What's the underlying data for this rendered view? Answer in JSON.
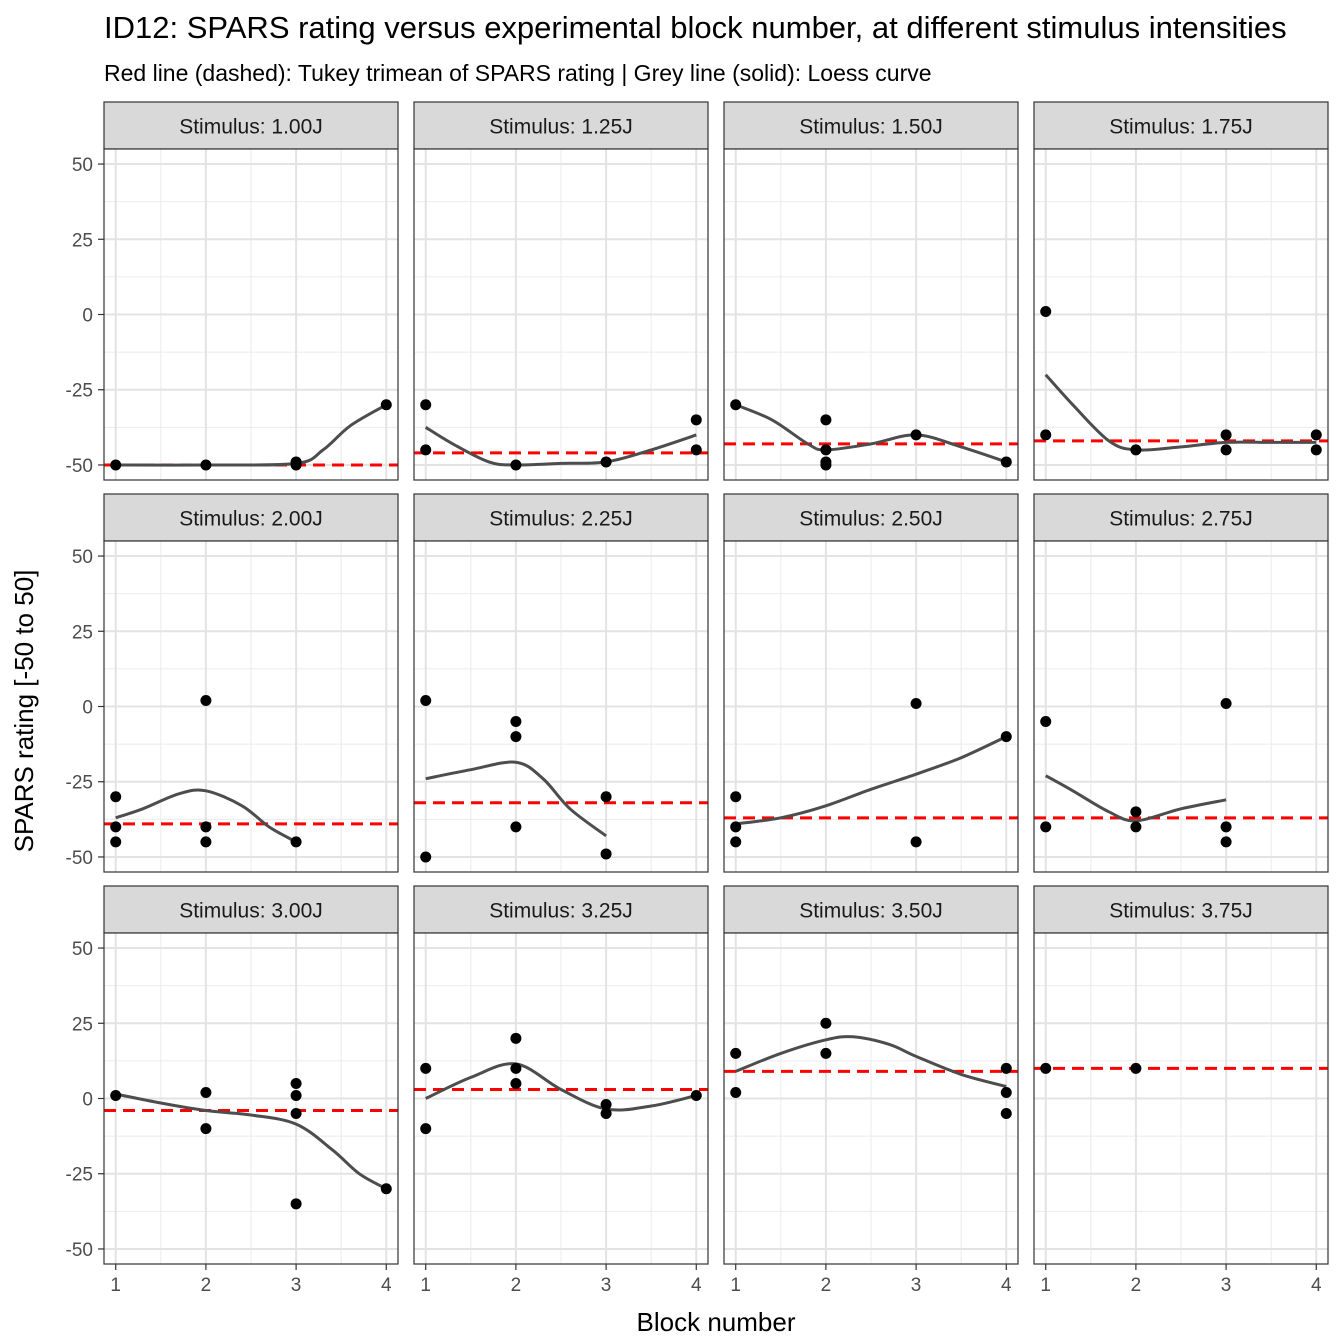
{
  "title": "ID12: SPARS rating versus experimental block number, at different stimulus intensities",
  "subtitle": "Red line (dashed): Tukey trimean of SPARS rating | Grey line (solid): Loess curve",
  "xlabel": "Block number",
  "ylabel": "SPARS rating [-50 to 50]",
  "colors": {
    "trimean": "#ff0000",
    "loess": "#4d4d4d",
    "points": "#000000",
    "strip": "#d9d9d9"
  },
  "chart_data": {
    "type": "scatter",
    "facet_variable": "Stimulus",
    "xlim": [
      0.87,
      4.13
    ],
    "ylim": [
      -55,
      55
    ],
    "x_ticks": [
      1,
      2,
      3,
      4
    ],
    "y_ticks": [
      -50,
      -25,
      0,
      25,
      50
    ],
    "grid": true,
    "panels": [
      {
        "label": "Stimulus: 1.00J",
        "trimean": -50,
        "points": [
          [
            1,
            -50
          ],
          [
            2,
            -50
          ],
          [
            3,
            -49
          ],
          [
            3,
            -50
          ],
          [
            4,
            -30
          ]
        ],
        "loess": [
          [
            1,
            -50
          ],
          [
            2,
            -50
          ],
          [
            3,
            -49.5
          ],
          [
            3.3,
            -45
          ],
          [
            3.6,
            -37
          ],
          [
            4,
            -30
          ]
        ]
      },
      {
        "label": "Stimulus: 1.25J",
        "trimean": -46,
        "points": [
          [
            1,
            -30
          ],
          [
            1,
            -45
          ],
          [
            2,
            -50
          ],
          [
            3,
            -49
          ],
          [
            4,
            -35
          ],
          [
            4,
            -45
          ]
        ],
        "loess": [
          [
            1,
            -37.5
          ],
          [
            1.3,
            -43
          ],
          [
            1.7,
            -49
          ],
          [
            2,
            -50
          ],
          [
            2.5,
            -49.5
          ],
          [
            3,
            -49
          ],
          [
            3.5,
            -45
          ],
          [
            4,
            -40
          ]
        ]
      },
      {
        "label": "Stimulus: 1.50J",
        "trimean": -43,
        "points": [
          [
            1,
            -30
          ],
          [
            2,
            -35
          ],
          [
            2,
            -45
          ],
          [
            2,
            -49
          ],
          [
            2,
            -50
          ],
          [
            3,
            -40
          ],
          [
            4,
            -49
          ]
        ],
        "loess": [
          [
            1,
            -30
          ],
          [
            1.4,
            -35
          ],
          [
            1.8,
            -43
          ],
          [
            2,
            -45
          ],
          [
            2.5,
            -43
          ],
          [
            3,
            -40
          ],
          [
            3.5,
            -44
          ],
          [
            4,
            -49
          ]
        ]
      },
      {
        "label": "Stimulus: 1.75J",
        "trimean": -42,
        "points": [
          [
            1,
            1
          ],
          [
            1,
            -40
          ],
          [
            2,
            -45
          ],
          [
            3,
            -40
          ],
          [
            3,
            -45
          ],
          [
            4,
            -40
          ],
          [
            4,
            -45
          ]
        ],
        "loess": [
          [
            1,
            -20
          ],
          [
            1.3,
            -30
          ],
          [
            1.7,
            -42
          ],
          [
            2,
            -45
          ],
          [
            2.5,
            -44
          ],
          [
            3,
            -42.5
          ],
          [
            3.5,
            -42.5
          ],
          [
            4,
            -42.5
          ]
        ]
      },
      {
        "label": "Stimulus: 2.00J",
        "trimean": -39,
        "points": [
          [
            1,
            -30
          ],
          [
            1,
            -40
          ],
          [
            1,
            -45
          ],
          [
            2,
            2
          ],
          [
            2,
            -40
          ],
          [
            2,
            -45
          ],
          [
            3,
            -45
          ]
        ],
        "loess": [
          [
            1,
            -37
          ],
          [
            1.3,
            -34
          ],
          [
            1.7,
            -29
          ],
          [
            2,
            -28
          ],
          [
            2.4,
            -33
          ],
          [
            2.7,
            -40
          ],
          [
            3,
            -45
          ]
        ]
      },
      {
        "label": "Stimulus: 2.25J",
        "trimean": -32,
        "points": [
          [
            1,
            2
          ],
          [
            1,
            -50
          ],
          [
            2,
            -5
          ],
          [
            2,
            -10
          ],
          [
            2,
            -40
          ],
          [
            3,
            -30
          ],
          [
            3,
            -49
          ]
        ],
        "loess": [
          [
            1,
            -24
          ],
          [
            1.5,
            -21
          ],
          [
            2,
            -18.5
          ],
          [
            2.3,
            -24
          ],
          [
            2.6,
            -34
          ],
          [
            3,
            -43
          ]
        ]
      },
      {
        "label": "Stimulus: 2.50J",
        "trimean": -37,
        "points": [
          [
            1,
            -30
          ],
          [
            1,
            -40
          ],
          [
            1,
            -45
          ],
          [
            3,
            1
          ],
          [
            3,
            -45
          ],
          [
            4,
            -10
          ]
        ],
        "loess": [
          [
            1,
            -39
          ],
          [
            1.5,
            -37
          ],
          [
            2,
            -33
          ],
          [
            2.5,
            -27.5
          ],
          [
            3,
            -22.5
          ],
          [
            3.5,
            -17
          ],
          [
            4,
            -10
          ]
        ]
      },
      {
        "label": "Stimulus: 2.75J",
        "trimean": -37,
        "points": [
          [
            1,
            -5
          ],
          [
            1,
            -40
          ],
          [
            2,
            -35
          ],
          [
            2,
            -40
          ],
          [
            3,
            1
          ],
          [
            3,
            -40
          ],
          [
            3,
            -45
          ]
        ],
        "loess": [
          [
            1,
            -23
          ],
          [
            1.3,
            -28
          ],
          [
            1.7,
            -35
          ],
          [
            2,
            -38
          ],
          [
            2.5,
            -34
          ],
          [
            3,
            -31
          ]
        ]
      },
      {
        "label": "Stimulus: 3.00J",
        "trimean": -4,
        "points": [
          [
            1,
            1
          ],
          [
            2,
            2
          ],
          [
            2,
            -10
          ],
          [
            3,
            5
          ],
          [
            3,
            1
          ],
          [
            3,
            -5
          ],
          [
            3,
            -35
          ],
          [
            4,
            -30
          ]
        ],
        "loess": [
          [
            1,
            1.5
          ],
          [
            1.5,
            -1.5
          ],
          [
            2,
            -4
          ],
          [
            2.5,
            -5.5
          ],
          [
            3,
            -8.5
          ],
          [
            3.4,
            -17
          ],
          [
            3.7,
            -25
          ],
          [
            4,
            -30
          ]
        ]
      },
      {
        "label": "Stimulus: 3.25J",
        "trimean": 3,
        "points": [
          [
            1,
            10
          ],
          [
            1,
            -10
          ],
          [
            2,
            20
          ],
          [
            2,
            10
          ],
          [
            2,
            5
          ],
          [
            3,
            -2
          ],
          [
            3,
            -5
          ],
          [
            4,
            1
          ]
        ],
        "loess": [
          [
            1,
            0
          ],
          [
            1.5,
            7
          ],
          [
            2,
            11.5
          ],
          [
            2.5,
            3
          ],
          [
            3,
            -3.5
          ],
          [
            3.5,
            -2.5
          ],
          [
            4,
            1
          ]
        ]
      },
      {
        "label": "Stimulus: 3.50J",
        "trimean": 9,
        "points": [
          [
            1,
            15
          ],
          [
            1,
            2
          ],
          [
            2,
            25
          ],
          [
            2,
            15
          ],
          [
            4,
            10
          ],
          [
            4,
            2
          ],
          [
            4,
            -5
          ]
        ],
        "loess": [
          [
            1,
            9
          ],
          [
            1.5,
            15
          ],
          [
            2,
            19.5
          ],
          [
            2.3,
            20.5
          ],
          [
            2.7,
            18
          ],
          [
            3,
            14
          ],
          [
            3.5,
            8
          ],
          [
            4,
            4
          ]
        ]
      },
      {
        "label": "Stimulus: 3.75J",
        "trimean": 10,
        "points": [
          [
            1,
            10
          ],
          [
            2,
            10
          ]
        ],
        "loess": []
      }
    ]
  }
}
